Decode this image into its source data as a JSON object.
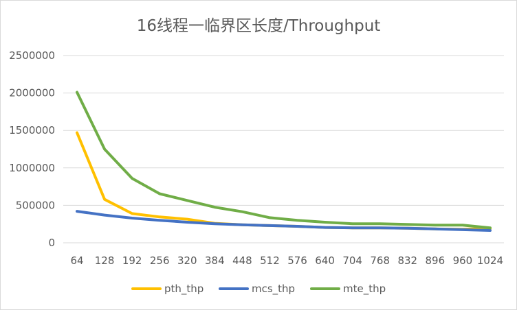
{
  "chart_data": {
    "type": "line",
    "title": "16线程一临界区长度/Throughput",
    "xlabel": "",
    "ylabel": "",
    "categories": [
      "64",
      "128",
      "192",
      "256",
      "320",
      "384",
      "448",
      "512",
      "576",
      "640",
      "704",
      "768",
      "832",
      "896",
      "960",
      "1024"
    ],
    "ylim": [
      0,
      2500000
    ],
    "yticks": [
      0,
      500000,
      1000000,
      1500000,
      2000000,
      2500000
    ],
    "ytick_labels": [
      "0",
      "500000",
      "1000000",
      "1500000",
      "2000000",
      "2500000"
    ],
    "grid": true,
    "legend_position": "bottom",
    "series": [
      {
        "name": "pth_thp",
        "color": "#ffc000",
        "values": [
          1470000,
          580000,
          390000,
          345000,
          315000,
          260000,
          240000,
          230000,
          220000,
          205000,
          200000,
          200000,
          195000,
          185000,
          180000,
          190000
        ]
      },
      {
        "name": "mcs_thp",
        "color": "#4472c4",
        "values": [
          420000,
          370000,
          330000,
          300000,
          275000,
          255000,
          240000,
          230000,
          220000,
          205000,
          200000,
          200000,
          195000,
          185000,
          175000,
          165000
        ]
      },
      {
        "name": "mte_thp",
        "color": "#70ad47",
        "values": [
          2010000,
          1250000,
          860000,
          655000,
          565000,
          475000,
          415000,
          335000,
          300000,
          275000,
          255000,
          255000,
          245000,
          235000,
          235000,
          200000
        ]
      }
    ]
  }
}
